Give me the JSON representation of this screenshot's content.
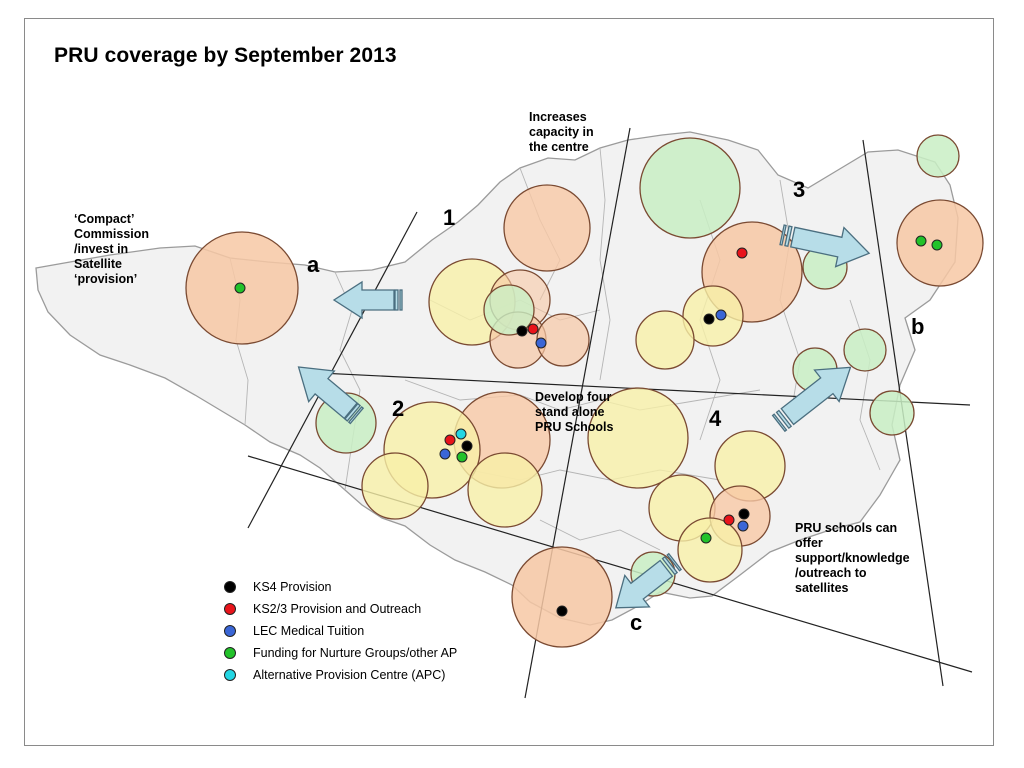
{
  "title": "PRU coverage by September 2013",
  "notes": {
    "compact": "‘Compact’\nCommission\n/invest in\nSatellite\n‘provision’",
    "increases": "Increases\ncapacity in\nthe centre",
    "develop": "Develop four\nstand alone\nPRU Schools",
    "pru_schools": "PRU schools can\noffer\nsupport/knowledge\n/outreach to\nsatellites"
  },
  "zone_numbers": [
    "1",
    "2",
    "3",
    "4"
  ],
  "zone_letters": [
    "a",
    "b",
    "c"
  ],
  "legend": [
    {
      "label": "KS4 Provision",
      "color": "#000000"
    },
    {
      "label": "KS2/3 Provision and Outreach",
      "color": "#e8141b"
    },
    {
      "label": "LEC Medical Tuition",
      "color": "#3a66d6"
    },
    {
      "label": "Funding for Nurture Groups/other AP",
      "color": "#22c22a"
    },
    {
      "label": "Alternative Provision Centre (APC)",
      "color": "#23d6e3"
    }
  ],
  "colors": {
    "orange_zone": "#f7c8a5",
    "yellow_zone": "#f7f0a8",
    "green_zone": "#c9efc4",
    "arrow_fill": "#b7dde8",
    "arrow_stroke": "#4b6f80"
  }
}
